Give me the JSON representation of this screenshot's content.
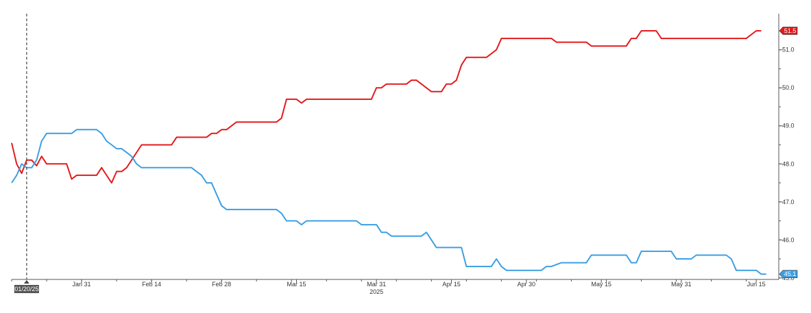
{
  "chart_data": {
    "type": "line",
    "title": "",
    "xlabel": "",
    "ylabel": "",
    "year_label": "2025",
    "x_range": [
      "2025-01-17",
      "2025-06-18"
    ],
    "ylim": [
      44.96,
      51.95
    ],
    "y_ticks": [
      "45.0",
      "46.0",
      "47.0",
      "48.0",
      "49.0",
      "50.0",
      "51.0"
    ],
    "x_ticks": [
      {
        "date": "2025-01-31",
        "label": "Jan 31"
      },
      {
        "date": "2025-02-14",
        "label": "Feb 14"
      },
      {
        "date": "2025-02-28",
        "label": "Feb 28"
      },
      {
        "date": "2025-03-15",
        "label": "Mar 15"
      },
      {
        "date": "2025-03-31",
        "label": "Mar 31"
      },
      {
        "date": "2025-04-15",
        "label": "Apr 15"
      },
      {
        "date": "2025-04-30",
        "label": "Apr 30"
      },
      {
        "date": "2025-05-15",
        "label": "May 15"
      },
      {
        "date": "2025-05-31",
        "label": "May 31"
      },
      {
        "date": "2025-06-15",
        "label": "Jun 15"
      }
    ],
    "vline": {
      "date": "2025-01-20",
      "label": "01/20/25"
    },
    "grid": false,
    "series": [
      {
        "name": "",
        "color": "#e31a1c",
        "last_label": "51.5",
        "points": [
          [
            "2025-01-17",
            48.55
          ],
          [
            "2025-01-18",
            48.0
          ],
          [
            "2025-01-19",
            47.75
          ],
          [
            "2025-01-20",
            48.1
          ],
          [
            "2025-01-21",
            48.1
          ],
          [
            "2025-01-22",
            47.95
          ],
          [
            "2025-01-23",
            48.2
          ],
          [
            "2025-01-24",
            48.0
          ],
          [
            "2025-01-28",
            48.0
          ],
          [
            "2025-01-29",
            47.6
          ],
          [
            "2025-01-30",
            47.7
          ],
          [
            "2025-02-03",
            47.7
          ],
          [
            "2025-02-04",
            47.9
          ],
          [
            "2025-02-06",
            47.5
          ],
          [
            "2025-02-07",
            47.8
          ],
          [
            "2025-02-08",
            47.8
          ],
          [
            "2025-02-09",
            47.9
          ],
          [
            "2025-02-12",
            48.5
          ],
          [
            "2025-02-18",
            48.5
          ],
          [
            "2025-02-19",
            48.7
          ],
          [
            "2025-02-25",
            48.7
          ],
          [
            "2025-02-26",
            48.8
          ],
          [
            "2025-02-27",
            48.8
          ],
          [
            "2025-02-28",
            48.9
          ],
          [
            "2025-03-01",
            48.9
          ],
          [
            "2025-03-03",
            49.1
          ],
          [
            "2025-03-11",
            49.1
          ],
          [
            "2025-03-12",
            49.2
          ],
          [
            "2025-03-13",
            49.7
          ],
          [
            "2025-03-15",
            49.7
          ],
          [
            "2025-03-16",
            49.6
          ],
          [
            "2025-03-17",
            49.7
          ],
          [
            "2025-03-30",
            49.7
          ],
          [
            "2025-03-31",
            50.0
          ],
          [
            "2025-04-01",
            50.0
          ],
          [
            "2025-04-02",
            50.1
          ],
          [
            "2025-04-06",
            50.1
          ],
          [
            "2025-04-07",
            50.2
          ],
          [
            "2025-04-08",
            50.2
          ],
          [
            "2025-04-11",
            49.9
          ],
          [
            "2025-04-13",
            49.9
          ],
          [
            "2025-04-14",
            50.1
          ],
          [
            "2025-04-15",
            50.1
          ],
          [
            "2025-04-16",
            50.2
          ],
          [
            "2025-04-17",
            50.6
          ],
          [
            "2025-04-18",
            50.8
          ],
          [
            "2025-04-22",
            50.8
          ],
          [
            "2025-04-23",
            50.9
          ],
          [
            "2025-04-24",
            51.0
          ],
          [
            "2025-04-25",
            51.3
          ],
          [
            "2025-05-05",
            51.3
          ],
          [
            "2025-05-06",
            51.2
          ],
          [
            "2025-05-12",
            51.2
          ],
          [
            "2025-05-13",
            51.1
          ],
          [
            "2025-05-20",
            51.1
          ],
          [
            "2025-05-21",
            51.3
          ],
          [
            "2025-05-22",
            51.3
          ],
          [
            "2025-05-23",
            51.5
          ],
          [
            "2025-05-26",
            51.5
          ],
          [
            "2025-05-27",
            51.3
          ],
          [
            "2025-06-13",
            51.3
          ],
          [
            "2025-06-15",
            51.5
          ],
          [
            "2025-06-16",
            51.5
          ]
        ]
      },
      {
        "name": "",
        "color": "#3c9fe3",
        "last_label": "45.1",
        "points": [
          [
            "2025-01-17",
            47.5
          ],
          [
            "2025-01-18",
            47.7
          ],
          [
            "2025-01-19",
            48.0
          ],
          [
            "2025-01-20",
            47.9
          ],
          [
            "2025-01-21",
            47.9
          ],
          [
            "2025-01-22",
            48.1
          ],
          [
            "2025-01-23",
            48.6
          ],
          [
            "2025-01-24",
            48.8
          ],
          [
            "2025-01-29",
            48.8
          ],
          [
            "2025-01-30",
            48.9
          ],
          [
            "2025-02-03",
            48.9
          ],
          [
            "2025-02-04",
            48.8
          ],
          [
            "2025-02-05",
            48.6
          ],
          [
            "2025-02-06",
            48.5
          ],
          [
            "2025-02-07",
            48.4
          ],
          [
            "2025-02-08",
            48.4
          ],
          [
            "2025-02-09",
            48.3
          ],
          [
            "2025-02-10",
            48.2
          ],
          [
            "2025-02-11",
            48.0
          ],
          [
            "2025-02-12",
            47.9
          ],
          [
            "2025-02-22",
            47.9
          ],
          [
            "2025-02-23",
            47.8
          ],
          [
            "2025-02-24",
            47.7
          ],
          [
            "2025-02-25",
            47.5
          ],
          [
            "2025-02-26",
            47.5
          ],
          [
            "2025-02-27",
            47.2
          ],
          [
            "2025-02-28",
            46.9
          ],
          [
            "2025-03-01",
            46.8
          ],
          [
            "2025-03-11",
            46.8
          ],
          [
            "2025-03-12",
            46.7
          ],
          [
            "2025-03-13",
            46.5
          ],
          [
            "2025-03-15",
            46.5
          ],
          [
            "2025-03-16",
            46.4
          ],
          [
            "2025-03-17",
            46.5
          ],
          [
            "2025-03-27",
            46.5
          ],
          [
            "2025-03-28",
            46.4
          ],
          [
            "2025-03-31",
            46.4
          ],
          [
            "2025-04-01",
            46.2
          ],
          [
            "2025-04-02",
            46.2
          ],
          [
            "2025-04-03",
            46.1
          ],
          [
            "2025-04-09",
            46.1
          ],
          [
            "2025-04-10",
            46.2
          ],
          [
            "2025-04-11",
            46.0
          ],
          [
            "2025-04-12",
            45.8
          ],
          [
            "2025-04-17",
            45.8
          ],
          [
            "2025-04-18",
            45.3
          ],
          [
            "2025-04-23",
            45.3
          ],
          [
            "2025-04-24",
            45.5
          ],
          [
            "2025-04-25",
            45.3
          ],
          [
            "2025-04-26",
            45.2
          ],
          [
            "2025-05-03",
            45.2
          ],
          [
            "2025-05-04",
            45.3
          ],
          [
            "2025-05-05",
            45.3
          ],
          [
            "2025-05-07",
            45.4
          ],
          [
            "2025-05-12",
            45.4
          ],
          [
            "2025-05-13",
            45.6
          ],
          [
            "2025-05-20",
            45.6
          ],
          [
            "2025-05-21",
            45.4
          ],
          [
            "2025-05-22",
            45.4
          ],
          [
            "2025-05-23",
            45.7
          ],
          [
            "2025-05-29",
            45.7
          ],
          [
            "2025-05-30",
            45.5
          ],
          [
            "2025-06-02",
            45.5
          ],
          [
            "2025-06-03",
            45.6
          ],
          [
            "2025-06-09",
            45.6
          ],
          [
            "2025-06-10",
            45.5
          ],
          [
            "2025-06-11",
            45.2
          ],
          [
            "2025-06-15",
            45.2
          ],
          [
            "2025-06-16",
            45.1
          ],
          [
            "2025-06-17",
            45.1
          ]
        ]
      }
    ]
  }
}
